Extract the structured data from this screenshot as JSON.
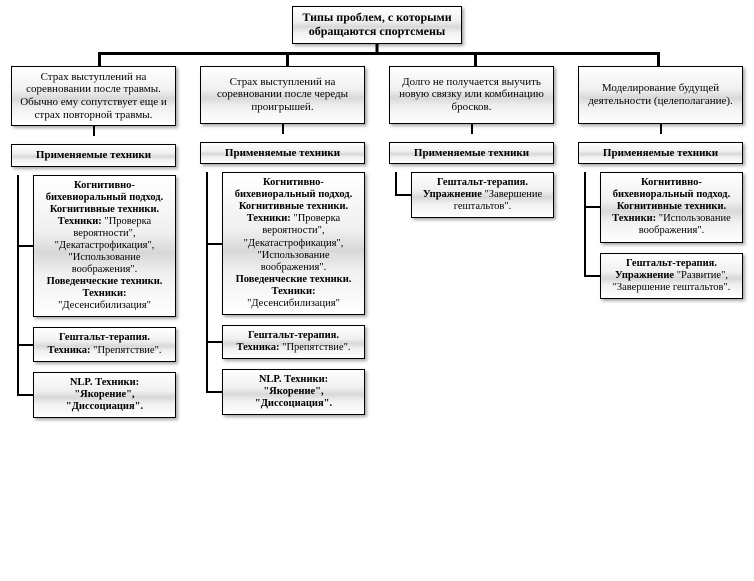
{
  "type": "tree",
  "colors": {
    "box_gradient_top": "#ffffff",
    "box_gradient_mid": "#d8d8d8",
    "border": "#000000",
    "connector": "#000000",
    "background": "#ffffff"
  },
  "typography": {
    "family": "Times New Roman",
    "base_size_pt": 11,
    "bold_headers": true
  },
  "root": "Типы проблем, с которыми обращаются спортсмены",
  "tech_header": "Применяемые техники",
  "columns": [
    {
      "problem": "Страх выступлений на соревновании после травмы. Обычно ему сопутствует еще и страх повторной травмы.",
      "details": [
        {
          "bold1": "Когнитивно-бихевиоральный подход. Когнитивные техники. Техники:",
          "plain1": " \"Проверка вероятности\", \"Декатастрофикация\", \"Использование воображения\". ",
          "bold2": "Поведенческие техники. Техники:",
          "plain2": " \"Десенсибилизация\""
        },
        {
          "bold1": "Гештальт-терапия. Техника:",
          "plain1": " \"Препятствие\".",
          "bold2": "",
          "plain2": ""
        },
        {
          "bold1": "NLP. Техники: \"Якорение\", \"Диссоциация\".",
          "plain1": "",
          "bold2": "",
          "plain2": ""
        }
      ]
    },
    {
      "problem": "Страх выступлений на соревновании после череды проигрышей.",
      "details": [
        {
          "bold1": "Когнитивно-бихевиоральный подход. Когнитивные техники. Техники:",
          "plain1": " \"Проверка вероятности\", \"Декатастрофикация\", \"Использование воображения\". ",
          "bold2": "Поведенческие техники. Техники:",
          "plain2": " \"Десенсибилизация\""
        },
        {
          "bold1": "Гештальт-терапия. Техника:",
          "plain1": " \"Препятствие\".",
          "bold2": "",
          "plain2": ""
        },
        {
          "bold1": "NLP. Техники: \"Якорение\", \"Диссоциация\".",
          "plain1": "",
          "bold2": "",
          "plain2": ""
        }
      ]
    },
    {
      "problem": "Долго не получается выучить новую связку или комбинацию бросков.",
      "details": [
        {
          "bold1": "Гештальт-терапия. Упражнение",
          "plain1": " \"Завершение гештальтов\".",
          "bold2": "",
          "plain2": ""
        }
      ]
    },
    {
      "problem": "Моделирование будущей деятельности (целеполагание).",
      "details": [
        {
          "bold1": "Когнитивно-бихевиоральный подход. Когнитивные техники. Техники:",
          "plain1": " \"Использование воображения\".",
          "bold2": "",
          "plain2": ""
        },
        {
          "bold1": "Гештальт-терапия. Упражнение",
          "plain1": " \"Развитие\", \"Завершение гештальтов\".",
          "bold2": "",
          "plain2": ""
        }
      ]
    }
  ]
}
